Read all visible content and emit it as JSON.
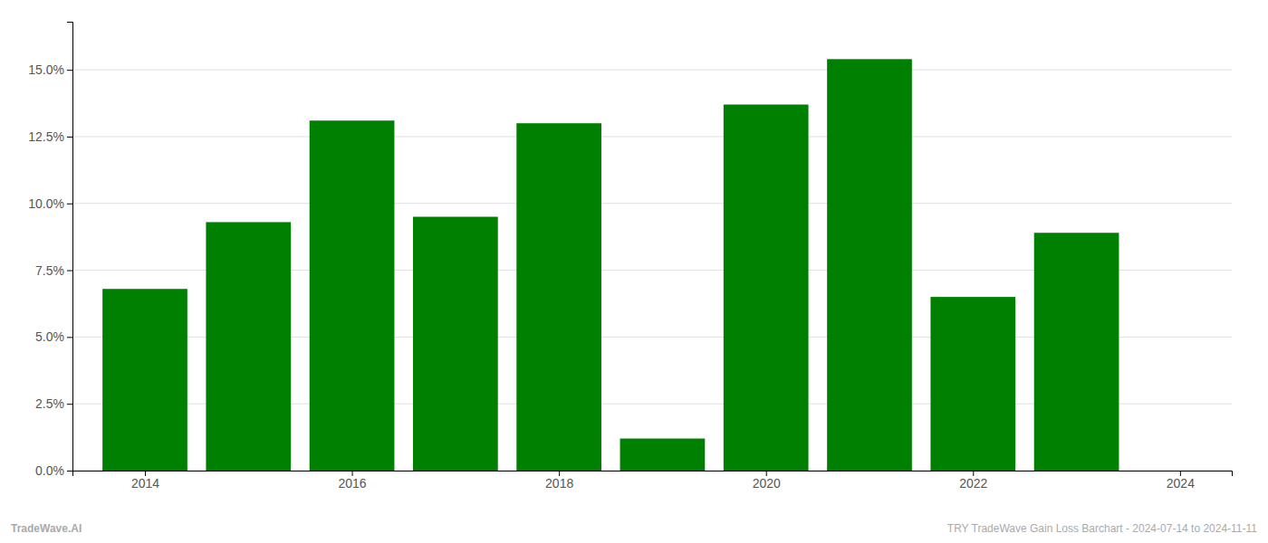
{
  "chart_data": {
    "type": "bar",
    "x": [
      2014,
      2015,
      2016,
      2017,
      2018,
      2019,
      2020,
      2021,
      2022,
      2023
    ],
    "values": [
      0.068,
      0.093,
      0.131,
      0.095,
      0.13,
      0.012,
      0.137,
      0.154,
      0.065,
      0.089
    ],
    "color": "#008000",
    "xlim": [
      2013.3,
      2024.5
    ],
    "xticks": [
      2014,
      2016,
      2018,
      2020,
      2022,
      2024
    ],
    "ylim": [
      0,
      0.168
    ],
    "yticks": [
      {
        "value": 0.0,
        "label": "0.0%"
      },
      {
        "value": 0.025,
        "label": "2.5%"
      },
      {
        "value": 0.05,
        "label": "5.0%"
      },
      {
        "value": 0.075,
        "label": "7.5%"
      },
      {
        "value": 0.1,
        "label": "10.0%"
      },
      {
        "value": 0.125,
        "label": "12.5%"
      },
      {
        "value": 0.15,
        "label": "15.0%"
      }
    ],
    "grid": true,
    "annotations": [
      "TradeWave.AI",
      "TRY TradeWave Gain Loss Barchart - 2024-07-14 to 2024-11-11"
    ]
  }
}
